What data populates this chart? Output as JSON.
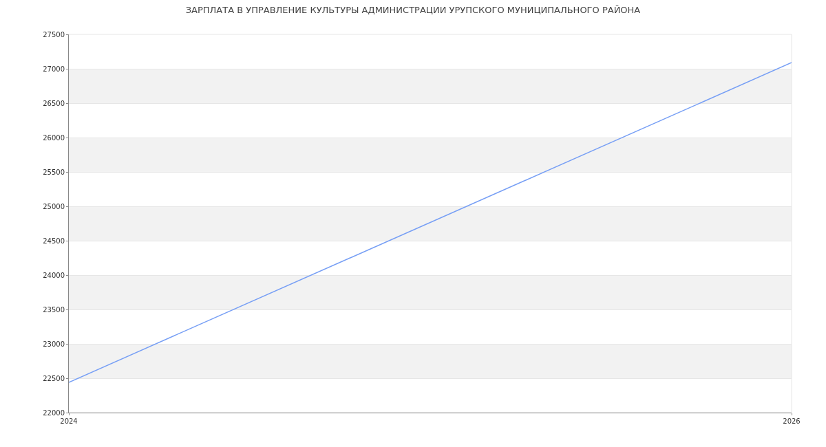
{
  "chart_data": {
    "type": "line",
    "title": "ЗАРПЛАТА В УПРАВЛЕНИЕ КУЛЬТУРЫ АДМИНИСТРАЦИИ УРУПСКОГО МУНИЦИПАЛЬНОГО РАЙОНА",
    "x": [
      "2024",
      "2026"
    ],
    "series": [
      {
        "color": "#779ff5",
        "values": [
          22440,
          27090
        ]
      }
    ],
    "xlim": [
      "2024",
      "2026"
    ],
    "xticks": [
      "2024",
      "2026"
    ],
    "ylim": [
      22000,
      27500
    ],
    "yticks": [
      22000,
      22500,
      23000,
      23500,
      24000,
      24500,
      25000,
      25500,
      26000,
      26500,
      27000,
      27500
    ],
    "bands": [
      {
        "axis": "y",
        "from": 22500,
        "to": 23000,
        "color": "#f2f2f2"
      },
      {
        "axis": "y",
        "from": 23500,
        "to": 24000,
        "color": "#f2f2f2"
      },
      {
        "axis": "y",
        "from": 24500,
        "to": 25000,
        "color": "#f2f2f2"
      },
      {
        "axis": "y",
        "from": 25500,
        "to": 26000,
        "color": "#f2f2f2"
      },
      {
        "axis": "y",
        "from": 26500,
        "to": 27000,
        "color": "#f2f2f2"
      }
    ],
    "grid": "y",
    "marker": "none",
    "line_style": "solid"
  }
}
